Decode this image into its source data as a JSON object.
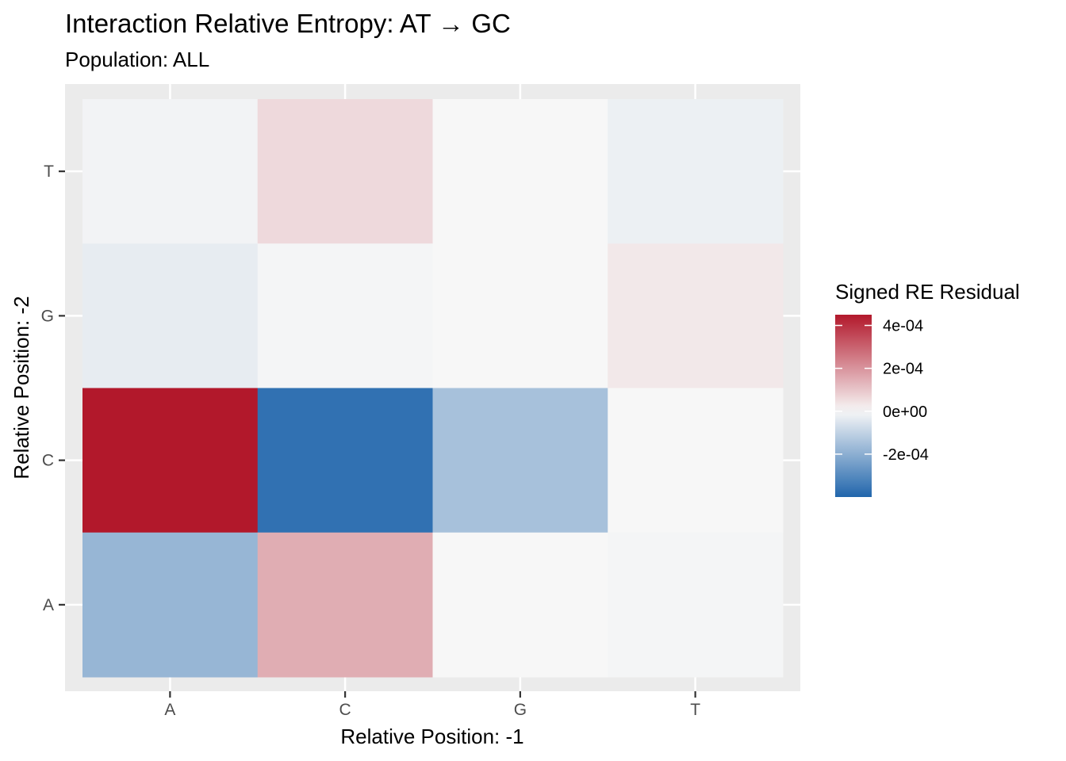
{
  "chart_data": {
    "type": "heatmap",
    "title": "Interaction Relative Entropy: AT → GC",
    "subtitle": "Population: ALL",
    "xlabel": "Relative Position: -1",
    "ylabel": "Relative Position: -2",
    "x_categories": [
      "A",
      "C",
      "G",
      "T"
    ],
    "y_categories": [
      "A",
      "C",
      "G",
      "T"
    ],
    "values": [
      {
        "x": "A",
        "y": "T",
        "value": -1e-05
      },
      {
        "x": "C",
        "y": "T",
        "value": 6e-05
      },
      {
        "x": "G",
        "y": "T",
        "value": 0.0
      },
      {
        "x": "T",
        "y": "T",
        "value": -2e-05
      },
      {
        "x": "A",
        "y": "G",
        "value": -3e-05
      },
      {
        "x": "C",
        "y": "G",
        "value": -5e-06
      },
      {
        "x": "G",
        "y": "G",
        "value": 0.0
      },
      {
        "x": "T",
        "y": "G",
        "value": 3e-05
      },
      {
        "x": "A",
        "y": "C",
        "value": 0.00045
      },
      {
        "x": "C",
        "y": "C",
        "value": -0.00037
      },
      {
        "x": "G",
        "y": "C",
        "value": -0.00015
      },
      {
        "x": "T",
        "y": "C",
        "value": 0.0
      },
      {
        "x": "A",
        "y": "A",
        "value": -0.00018
      },
      {
        "x": "C",
        "y": "A",
        "value": 0.00015
      },
      {
        "x": "G",
        "y": "A",
        "value": 0.0
      },
      {
        "x": "T",
        "y": "A",
        "value": -5e-06
      }
    ],
    "legend": {
      "title": "Signed RE Residual",
      "breaks": [
        0.0004,
        0.0002,
        0.0,
        -0.0002
      ],
      "break_labels": [
        "4e-04",
        "2e-04",
        "0e+00",
        "-2e-04"
      ],
      "range": [
        -0.0004,
        0.00045
      ],
      "placement": "right"
    },
    "colors": {
      "high": "#b2182b",
      "mid": "#f7f7f7",
      "low": "#2166ac",
      "panel_background": "#ebebeb",
      "grid": "#ffffff"
    },
    "grid": true
  }
}
